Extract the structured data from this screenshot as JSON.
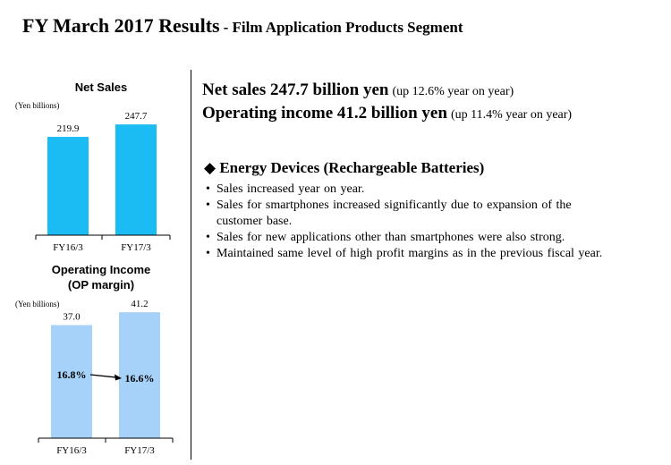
{
  "title": {
    "main": "FY March 2017 Results",
    "sub": "- Film Application Products Segment"
  },
  "headlines": [
    {
      "strong": "Net sales 247.7 billion yen",
      "note": "(up 12.6% year on year)"
    },
    {
      "strong": "Operating income 41.2 billion yen",
      "note": "(up 11.4% year on year)"
    }
  ],
  "section": {
    "marker": "◆",
    "title": "Energy Devices (Rechargeable Batteries)",
    "bullets": [
      "Sales increased year on year.",
      "Sales for smartphones increased significantly due to expansion of the customer base.",
      "Sales for new applications other than smartphones were also strong.",
      "Maintained same level of high profit margins as in the previous fiscal year."
    ]
  },
  "chart_data": [
    {
      "type": "bar",
      "title": "Net Sales",
      "ylabel": "(Yen billions)",
      "categories": [
        "FY16/3",
        "FY17/3"
      ],
      "values": [
        219.9,
        247.7
      ],
      "value_labels": [
        "219.9",
        "247.7"
      ],
      "ylim": [
        0,
        264
      ],
      "color": "#1bbcf3"
    },
    {
      "type": "bar",
      "title": [
        "Operating Income",
        "(OP margin)"
      ],
      "ylabel": "(Yen billions)",
      "categories": [
        "FY16/3",
        "FY17/3"
      ],
      "values": [
        37.0,
        41.2
      ],
      "value_labels": [
        "37.0",
        "41.2"
      ],
      "margins": [
        "16.8%",
        "16.6%"
      ],
      "ylim": [
        0,
        43.6
      ],
      "color": "#a6d1f8"
    }
  ]
}
